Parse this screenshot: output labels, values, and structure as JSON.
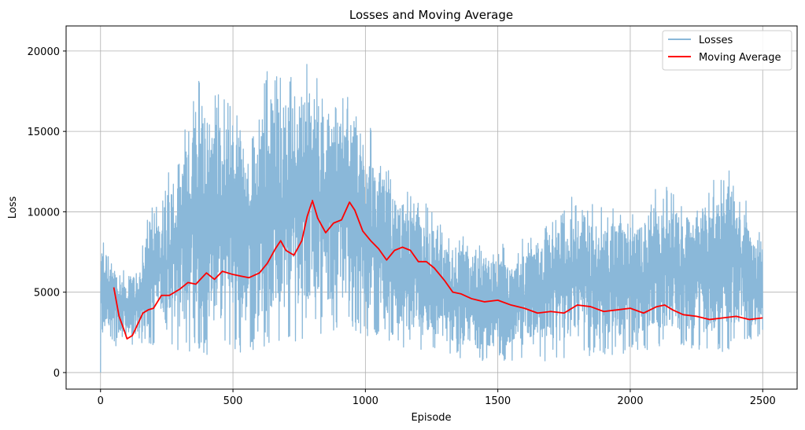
{
  "chart_data": {
    "type": "line",
    "title": "Losses and Moving Average",
    "xlabel": "Episode",
    "ylabel": "Loss",
    "xlim": [
      -130,
      2630
    ],
    "ylim": [
      -1030,
      21560
    ],
    "xticks": [
      0,
      500,
      1000,
      1500,
      2000,
      2500
    ],
    "yticks": [
      0,
      5000,
      10000,
      15000,
      20000
    ],
    "grid": true,
    "legend_position": "top-right",
    "series": [
      {
        "name": "Losses",
        "color": "#8ab8d9",
        "envelope": {
          "x": [
            0,
            25,
            50,
            75,
            100,
            150,
            200,
            250,
            300,
            350,
            400,
            450,
            500,
            550,
            600,
            650,
            700,
            750,
            800,
            850,
            900,
            950,
            1000,
            1050,
            1100,
            1150,
            1200,
            1250,
            1300,
            1350,
            1400,
            1450,
            1500,
            1550,
            1600,
            1650,
            1700,
            1750,
            1800,
            1850,
            1900,
            1950,
            2000,
            2050,
            2100,
            2150,
            2200,
            2250,
            2300,
            2350,
            2400,
            2450,
            2500
          ],
          "high": [
            9200,
            8200,
            7200,
            6400,
            6500,
            7000,
            12000,
            12500,
            15000,
            18300,
            18400,
            17500,
            17800,
            15600,
            18000,
            19500,
            19400,
            20500,
            19500,
            18000,
            17700,
            17700,
            16400,
            14000,
            12400,
            11700,
            11000,
            10500,
            8700,
            8700,
            8500,
            8000,
            8700,
            7000,
            8600,
            8400,
            10700,
            10500,
            11700,
            10500,
            10500,
            10700,
            10400,
            10200,
            12200,
            12200,
            10800,
            11000,
            12200,
            12200,
            13200,
            10000,
            8800
          ],
          "low": [
            0,
            2500,
            1600,
            1400,
            1300,
            1800,
            1700,
            1200,
            1100,
            1200,
            1100,
            1000,
            1000,
            1200,
            1500,
            1700,
            1800,
            2000,
            2500,
            2400,
            2500,
            2500,
            2200,
            2000,
            1800,
            1500,
            1200,
            1000,
            1000,
            800,
            600,
            500,
            700,
            700,
            800,
            700,
            700,
            800,
            800,
            1000,
            900,
            1000,
            1200,
            1400,
            1200,
            1500,
            1400,
            1500,
            1000,
            1200,
            1300,
            1700,
            2400
          ]
        }
      },
      {
        "name": "Moving Average",
        "color": "#ff0000",
        "x": [
          50,
          70,
          90,
          100,
          120,
          140,
          160,
          180,
          200,
          230,
          260,
          300,
          330,
          360,
          400,
          430,
          460,
          500,
          530,
          560,
          600,
          630,
          660,
          680,
          700,
          730,
          760,
          780,
          800,
          820,
          850,
          880,
          910,
          940,
          960,
          990,
          1020,
          1050,
          1080,
          1110,
          1140,
          1170,
          1200,
          1230,
          1260,
          1300,
          1330,
          1360,
          1400,
          1450,
          1500,
          1550,
          1600,
          1650,
          1700,
          1750,
          1800,
          1850,
          1900,
          1950,
          2000,
          2050,
          2100,
          2130,
          2160,
          2200,
          2250,
          2300,
          2350,
          2400,
          2450,
          2500
        ],
        "values": [
          5300,
          3500,
          2600,
          2100,
          2300,
          3000,
          3700,
          3900,
          4000,
          4800,
          4800,
          5200,
          5600,
          5500,
          6200,
          5800,
          6300,
          6100,
          6000,
          5900,
          6200,
          6800,
          7700,
          8200,
          7600,
          7300,
          8200,
          9700,
          10700,
          9600,
          8700,
          9300,
          9500,
          10600,
          10100,
          8800,
          8200,
          7700,
          7000,
          7600,
          7800,
          7600,
          6900,
          6900,
          6500,
          5700,
          5000,
          4900,
          4600,
          4400,
          4500,
          4200,
          4000,
          3700,
          3800,
          3700,
          4200,
          4100,
          3800,
          3900,
          4000,
          3700,
          4100,
          4200,
          3900,
          3600,
          3500,
          3300,
          3400,
          3500,
          3300,
          3400
        ]
      }
    ]
  }
}
